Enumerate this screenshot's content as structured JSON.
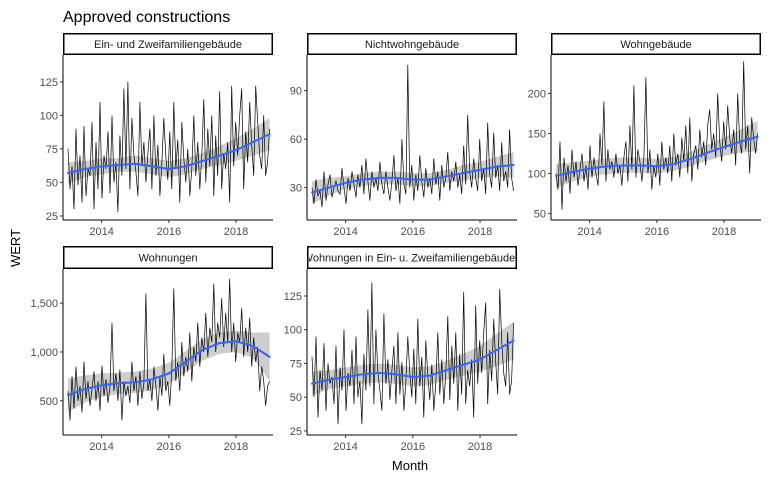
{
  "chart_data": {
    "type": "line",
    "title": "Approved constructions",
    "xlabel": "Month",
    "ylabel": "WERT",
    "x_ticks": [
      "2014",
      "2016",
      "2018"
    ],
    "x_range": [
      2012.85,
      2019.1
    ],
    "colors": {
      "raw": "#000000",
      "smooth": "#3366ff",
      "band": "#bdbdbd"
    },
    "panels": [
      {
        "name": "Ein- und Zweifamiliengebäude",
        "ylim": [
          22,
          145
        ],
        "y_ticks": [
          25,
          50,
          75,
          100,
          125
        ],
        "y_tick_labels": [
          "25",
          "50",
          "75",
          "100",
          "125"
        ],
        "values": [
          75,
          45,
          62,
          30,
          90,
          48,
          70,
          35,
          92,
          40,
          60,
          55,
          95,
          30,
          80,
          45,
          110,
          38,
          70,
          60,
          88,
          42,
          100,
          50,
          65,
          28,
          85,
          55,
          120,
          60,
          125,
          45,
          98,
          70,
          58,
          40,
          110,
          62,
          80,
          50,
          72,
          90,
          45,
          100,
          55,
          78,
          40,
          65,
          98,
          70,
          52,
          88,
          45,
          110,
          60,
          82,
          35,
          95,
          68,
          50,
          75,
          40,
          60,
          100,
          55,
          80,
          45,
          70,
          112,
          50,
          90,
          62,
          100,
          40,
          85,
          55,
          118,
          45,
          72,
          60,
          80,
          35,
          122,
          62,
          95,
          70,
          100,
          120,
          45,
          88,
          65,
          110,
          78,
          55,
          122,
          95,
          70,
          60,
          100,
          55,
          65,
          90
        ],
        "smooth": [
          [
            2013,
            57
          ],
          [
            2013.5,
            60
          ],
          [
            2014,
            62
          ],
          [
            2014.5,
            63
          ],
          [
            2015,
            64
          ],
          [
            2015.5,
            62
          ],
          [
            2016,
            60
          ],
          [
            2016.5,
            62
          ],
          [
            2017,
            66
          ],
          [
            2017.5,
            70
          ],
          [
            2018,
            74
          ],
          [
            2018.5,
            80
          ],
          [
            2019,
            86
          ]
        ],
        "band": [
          [
            2013,
            49,
            65
          ],
          [
            2013.5,
            54,
            66
          ],
          [
            2014,
            56,
            68
          ],
          [
            2014.5,
            58,
            68
          ],
          [
            2015,
            58,
            70
          ],
          [
            2015.5,
            56,
            68
          ],
          [
            2016,
            54,
            66
          ],
          [
            2016.5,
            56,
            68
          ],
          [
            2017,
            60,
            72
          ],
          [
            2017.5,
            63,
            77
          ],
          [
            2018,
            66,
            83
          ],
          [
            2018.5,
            70,
            90
          ],
          [
            2019,
            74,
            98
          ]
        ]
      },
      {
        "name": "Nichtwohngebäude",
        "ylim": [
          10,
          112
        ],
        "y_ticks": [
          30,
          60,
          90
        ],
        "y_tick_labels": [
          "30",
          "60",
          "90"
        ],
        "values": [
          30,
          20,
          35,
          25,
          28,
          18,
          40,
          22,
          32,
          38,
          24,
          30,
          34,
          28,
          26,
          42,
          30,
          20,
          36,
          28,
          40,
          32,
          24,
          38,
          30,
          44,
          26,
          48,
          34,
          22,
          40,
          30,
          36,
          28,
          46,
          32,
          26,
          40,
          30,
          22,
          34,
          50,
          28,
          36,
          20,
          60,
          32,
          26,
          106,
          30,
          44,
          22,
          38,
          28,
          50,
          34,
          24,
          42,
          30,
          36,
          26,
          48,
          32,
          40,
          22,
          44,
          30,
          36,
          52,
          28,
          40,
          34,
          46,
          30,
          38,
          26,
          56,
          32,
          75,
          40,
          30,
          48,
          36,
          28,
          60,
          34,
          42,
          26,
          70,
          38,
          30,
          64,
          36,
          44,
          28,
          58,
          34,
          40,
          30,
          66,
          36,
          28
        ],
        "smooth": [
          [
            2013,
            27
          ],
          [
            2013.5,
            30
          ],
          [
            2014,
            33
          ],
          [
            2014.5,
            35
          ],
          [
            2015,
            36
          ],
          [
            2015.5,
            36
          ],
          [
            2016,
            35
          ],
          [
            2016.5,
            35
          ],
          [
            2017,
            37
          ],
          [
            2017.5,
            39
          ],
          [
            2018,
            41
          ],
          [
            2018.5,
            43
          ],
          [
            2019,
            44
          ]
        ],
        "band": [
          [
            2013,
            20,
            34
          ],
          [
            2013.5,
            25,
            36
          ],
          [
            2014,
            29,
            37
          ],
          [
            2014.5,
            31,
            39
          ],
          [
            2015,
            32,
            40
          ],
          [
            2015.5,
            32,
            40
          ],
          [
            2016,
            31,
            39
          ],
          [
            2016.5,
            31,
            39
          ],
          [
            2017,
            33,
            41
          ],
          [
            2017.5,
            34,
            44
          ],
          [
            2018,
            36,
            46
          ],
          [
            2018.5,
            37,
            49
          ],
          [
            2019,
            36,
            52
          ]
        ]
      },
      {
        "name": "Wohngebäude",
        "ylim": [
          42,
          248
        ],
        "y_ticks": [
          50,
          100,
          150,
          200
        ],
        "y_tick_labels": [
          "50",
          "100",
          "150",
          "200"
        ],
        "values": [
          100,
          80,
          140,
          55,
          120,
          90,
          110,
          75,
          130,
          95,
          115,
          85,
          105,
          125,
          90,
          110,
          80,
          135,
          95,
          120,
          100,
          85,
          150,
          110,
          190,
          90,
          130,
          105,
          115,
          95,
          125,
          100,
          110,
          85,
          120,
          140,
          90,
          160,
          105,
          210,
          95,
          130,
          115,
          90,
          120,
          220,
          100,
          130,
          80,
          110,
          95,
          125,
          85,
          140,
          105,
          120,
          100,
          135,
          90,
          150,
          110,
          125,
          95,
          145,
          115,
          160,
          100,
          170,
          90,
          125,
          135,
          105,
          155,
          120,
          140,
          110,
          160,
          180,
          130,
          150,
          120,
          200,
          140,
          115,
          165,
          130,
          185,
          145,
          125,
          155,
          110,
          200,
          140,
          125,
          240,
          130,
          160,
          100,
          170,
          145,
          125,
          150
        ],
        "smooth": [
          [
            2013,
            97
          ],
          [
            2013.5,
            102
          ],
          [
            2014,
            106
          ],
          [
            2014.5,
            109
          ],
          [
            2015,
            110
          ],
          [
            2015.5,
            110
          ],
          [
            2016,
            109
          ],
          [
            2016.5,
            112
          ],
          [
            2017,
            118
          ],
          [
            2017.5,
            126
          ],
          [
            2018,
            133
          ],
          [
            2018.5,
            140
          ],
          [
            2019,
            146
          ]
        ],
        "band": [
          [
            2013,
            82,
            112
          ],
          [
            2013.5,
            90,
            114
          ],
          [
            2014,
            96,
            116
          ],
          [
            2014.5,
            99,
            119
          ],
          [
            2015,
            101,
            120
          ],
          [
            2015.5,
            101,
            120
          ],
          [
            2016,
            100,
            118
          ],
          [
            2016.5,
            103,
            121
          ],
          [
            2017,
            109,
            127
          ],
          [
            2017.5,
            116,
            136
          ],
          [
            2018,
            122,
            145
          ],
          [
            2018.5,
            126,
            155
          ],
          [
            2019,
            128,
            166
          ]
        ]
      },
      {
        "name": "Wohnungen",
        "ylim": [
          150,
          1850
        ],
        "y_ticks": [
          500,
          1000,
          1500
        ],
        "y_tick_labels": [
          "500",
          "1,000",
          "1,500"
        ],
        "values": [
          600,
          300,
          750,
          420,
          850,
          500,
          650,
          380,
          900,
          520,
          700,
          450,
          620,
          800,
          500,
          700,
          400,
          860,
          550,
          720,
          480,
          650,
          1300,
          600,
          780,
          500,
          820,
          300,
          700,
          550,
          650,
          480,
          900,
          600,
          750,
          450,
          800,
          520,
          680,
          1600,
          600,
          720,
          500,
          850,
          650,
          400,
          750,
          550,
          980,
          600,
          700,
          450,
          820,
          1650,
          700,
          900,
          600,
          1100,
          750,
          950,
          800,
          1200,
          700,
          1050,
          900,
          1300,
          850,
          1150,
          1000,
          1400,
          950,
          1250,
          1100,
          1700,
          1000,
          1300,
          1150,
          1550,
          1050,
          1400,
          1100,
          1750,
          1000,
          1300,
          900,
          1200,
          1100,
          1450,
          950,
          1250,
          1000,
          1350,
          850,
          1150,
          900,
          1050,
          600,
          850,
          700,
          450,
          650,
          700
        ],
        "smooth": [
          [
            2013,
            560
          ],
          [
            2013.5,
            620
          ],
          [
            2014,
            660
          ],
          [
            2014.5,
            680
          ],
          [
            2015,
            690
          ],
          [
            2015.5,
            720
          ],
          [
            2016,
            780
          ],
          [
            2016.5,
            900
          ],
          [
            2017,
            1020
          ],
          [
            2017.5,
            1090
          ],
          [
            2018,
            1110
          ],
          [
            2018.5,
            1060
          ],
          [
            2019,
            950
          ]
        ],
        "band": [
          [
            2013,
            390,
            730
          ],
          [
            2013.5,
            480,
            760
          ],
          [
            2014,
            540,
            780
          ],
          [
            2014.5,
            570,
            790
          ],
          [
            2015,
            580,
            800
          ],
          [
            2015.5,
            610,
            830
          ],
          [
            2016,
            670,
            890
          ],
          [
            2016.5,
            790,
            1010
          ],
          [
            2017,
            910,
            1130
          ],
          [
            2017.5,
            980,
            1200
          ],
          [
            2018,
            1000,
            1220
          ],
          [
            2018.5,
            940,
            1200
          ],
          [
            2019,
            700,
            1200
          ]
        ]
      },
      {
        "name": "Wohnungen in Ein- u. Zweifamiliengebäuden",
        "ylim": [
          22,
          145
        ],
        "y_ticks": [
          25,
          50,
          75,
          100,
          125
        ],
        "y_tick_labels": [
          "25",
          "50",
          "75",
          "100",
          "125"
        ],
        "values": [
          80,
          50,
          95,
          35,
          70,
          55,
          90,
          40,
          75,
          60,
          65,
          45,
          88,
          30,
          72,
          55,
          100,
          40,
          68,
          58,
          85,
          45,
          95,
          50,
          62,
          30,
          82,
          55,
          115,
          58,
          135,
          45,
          100,
          68,
          55,
          40,
          112,
          60,
          78,
          48,
          70,
          88,
          45,
          98,
          52,
          76,
          40,
          62,
          95,
          68,
          50,
          86,
          45,
          108,
          58,
          80,
          35,
          92,
          66,
          48,
          74,
          40,
          60,
          98,
          52,
          78,
          45,
          68,
          110,
          48,
          88,
          60,
          98,
          40,
          82,
          52,
          128,
          45,
          70,
          58,
          78,
          35,
          118,
          60,
          92,
          68,
          98,
          120,
          45,
          85,
          62,
          108,
          76,
          52,
          130,
          92,
          68,
          58,
          98,
          52,
          62,
          105
        ],
        "smooth": [
          [
            2013,
            60
          ],
          [
            2013.5,
            63
          ],
          [
            2014,
            65
          ],
          [
            2014.5,
            67
          ],
          [
            2015,
            68
          ],
          [
            2015.5,
            67
          ],
          [
            2016,
            65
          ],
          [
            2016.5,
            66
          ],
          [
            2017,
            70
          ],
          [
            2017.5,
            74
          ],
          [
            2018,
            78
          ],
          [
            2018.5,
            85
          ],
          [
            2019,
            92
          ]
        ],
        "band": [
          [
            2013,
            51,
            69
          ],
          [
            2013.5,
            56,
            70
          ],
          [
            2014,
            58,
            72
          ],
          [
            2014.5,
            60,
            74
          ],
          [
            2015,
            61,
            75
          ],
          [
            2015.5,
            60,
            74
          ],
          [
            2016,
            58,
            72
          ],
          [
            2016.5,
            59,
            73
          ],
          [
            2017,
            63,
            77
          ],
          [
            2017.5,
            66,
            82
          ],
          [
            2018,
            69,
            88
          ],
          [
            2018.5,
            73,
            97
          ],
          [
            2019,
            78,
            106
          ]
        ]
      }
    ]
  }
}
